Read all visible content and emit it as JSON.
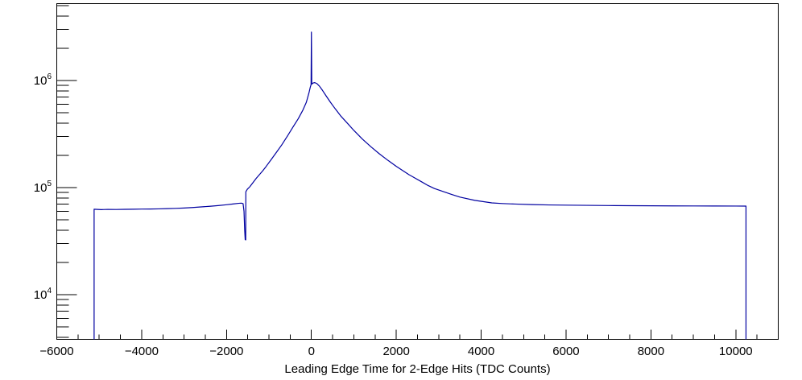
{
  "colors": {
    "background": "#ffffff",
    "axis": "#000000",
    "text": "#000000",
    "histogram_line": "#0000a0"
  },
  "chart_data": {
    "type": "line",
    "title": "",
    "xlabel": "Leading Edge Time for 2-Edge Hits (TDC Counts)",
    "ylabel": "",
    "grid": "off",
    "legend": "none",
    "x_axis": {
      "min": -6000,
      "max": 11000,
      "major_step": 2000,
      "minor_step": 500,
      "major_ticks": [
        {
          "v": -6000,
          "label": "−6000"
        },
        {
          "v": -4000,
          "label": "−4000"
        },
        {
          "v": -2000,
          "label": "−2000"
        },
        {
          "v": 0,
          "label": "0"
        },
        {
          "v": 2000,
          "label": "2000"
        },
        {
          "v": 4000,
          "label": "4000"
        },
        {
          "v": 6000,
          "label": "6000"
        },
        {
          "v": 8000,
          "label": "8000"
        },
        {
          "v": 10000,
          "label": "10000"
        }
      ]
    },
    "y_axis": {
      "scale": "log",
      "min": 3830,
      "max": 5220000,
      "label_base": "10",
      "labeled_decades": [
        4,
        5,
        6
      ],
      "minor_decades": [
        3,
        4,
        5,
        6
      ]
    },
    "series": [
      {
        "name": "leading_edge_time_2edge_hits",
        "color": "#0000a0",
        "x_range": [
          -5120,
          10240
        ],
        "features": {
          "left_plateau": 63000,
          "pre_dip_bump": 71600,
          "dip_x": -1560,
          "dip_value": 32500,
          "post_dip_jump": 91500,
          "peak_x": 0,
          "peak_value": 950000,
          "spike_value": 2830000,
          "right_plateau": 67500
        },
        "points": [
          [
            -5120,
            3830
          ],
          [
            -5120,
            62800
          ],
          [
            -4950,
            62300
          ],
          [
            -4800,
            62600
          ],
          [
            -4600,
            62500
          ],
          [
            -4400,
            62700
          ],
          [
            -4200,
            62800
          ],
          [
            -4000,
            63000
          ],
          [
            -3800,
            63100
          ],
          [
            -3600,
            63300
          ],
          [
            -3400,
            63600
          ],
          [
            -3200,
            64000
          ],
          [
            -3000,
            64500
          ],
          [
            -2800,
            65200
          ],
          [
            -2600,
            66000
          ],
          [
            -2400,
            66900
          ],
          [
            -2200,
            67900
          ],
          [
            -2000,
            69200
          ],
          [
            -1850,
            70300
          ],
          [
            -1720,
            71300
          ],
          [
            -1650,
            71600
          ],
          [
            -1610,
            70800
          ],
          [
            -1588,
            60000
          ],
          [
            -1572,
            40000
          ],
          [
            -1560,
            32700
          ],
          [
            -1548,
            32500
          ],
          [
            -1545,
            91500
          ],
          [
            -1510,
            96500
          ],
          [
            -1450,
            102000
          ],
          [
            -1300,
            122000
          ],
          [
            -1150,
            143000
          ],
          [
            -1070,
            157000
          ],
          [
            -950,
            182000
          ],
          [
            -830,
            212000
          ],
          [
            -700,
            250000
          ],
          [
            -560,
            305000
          ],
          [
            -430,
            370000
          ],
          [
            -310,
            440000
          ],
          [
            -200,
            530000
          ],
          [
            -120,
            625000
          ],
          [
            -60,
            760000
          ],
          [
            -25,
            870000
          ],
          [
            -8,
            915000
          ],
          [
            0,
            2830000
          ],
          [
            8,
            925000
          ],
          [
            40,
            948000
          ],
          [
            80,
            955000
          ],
          [
            130,
            935000
          ],
          [
            190,
            885000
          ],
          [
            260,
            810000
          ],
          [
            350,
            715000
          ],
          [
            450,
            625000
          ],
          [
            560,
            545000
          ],
          [
            700,
            462000
          ],
          [
            850,
            398000
          ],
          [
            1000,
            342000
          ],
          [
            1200,
            284000
          ],
          [
            1400,
            241000
          ],
          [
            1600,
            207000
          ],
          [
            1800,
            180000
          ],
          [
            2000,
            158000
          ],
          [
            2300,
            132000
          ],
          [
            2600,
            113000
          ],
          [
            2750,
            104500
          ],
          [
            2900,
            98000
          ],
          [
            3100,
            92000
          ],
          [
            3300,
            86500
          ],
          [
            3500,
            81500
          ],
          [
            3850,
            76000
          ],
          [
            4250,
            72000
          ],
          [
            4500,
            71000
          ],
          [
            4800,
            70200
          ],
          [
            5200,
            69400
          ],
          [
            5600,
            68900
          ],
          [
            6000,
            68600
          ],
          [
            6500,
            68300
          ],
          [
            7000,
            68000
          ],
          [
            7500,
            67800
          ],
          [
            8000,
            67600
          ],
          [
            8500,
            67500
          ],
          [
            9000,
            67400
          ],
          [
            9500,
            67300
          ],
          [
            10000,
            67250
          ],
          [
            10240,
            67200
          ],
          [
            10240,
            3830
          ]
        ]
      }
    ]
  }
}
